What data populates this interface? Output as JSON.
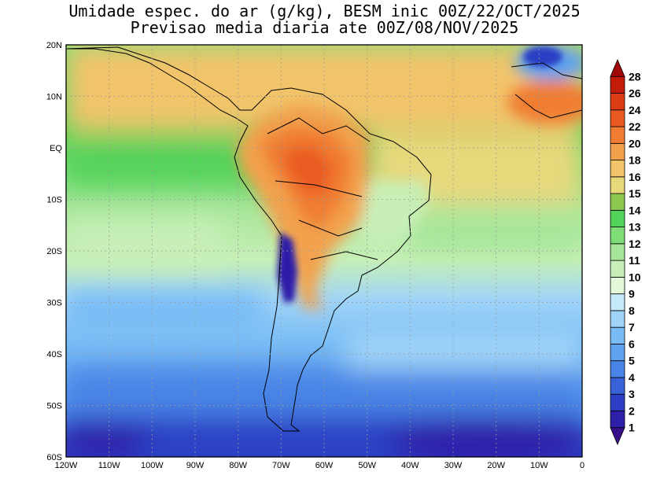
{
  "title": {
    "line1": "Umidade espec. do ar (g/kg), BESM inic 00Z/22/OCT/2025",
    "line2": "Previsao media diaria ate 00Z/08/NOV/2025"
  },
  "map": {
    "variable": "specific humidity",
    "units": "g/kg",
    "projection": "lat-lon",
    "lon_range": [
      -120,
      0
    ],
    "lat_range": [
      -60,
      20
    ],
    "lon_ticks": [
      "120W",
      "110W",
      "100W",
      "90W",
      "80W",
      "70W",
      "60W",
      "50W",
      "40W",
      "30W",
      "20W",
      "10W",
      "0"
    ],
    "lat_ticks": [
      "20N",
      "10N",
      "EQ",
      "10S",
      "20S",
      "30S",
      "40S",
      "50S",
      "60S"
    ],
    "gridlines": "dotted",
    "regions": [
      {
        "name": "Amazon / central South America",
        "value_g_kg": 22
      },
      {
        "name": "Andes altiplano",
        "value_g_kg": 2
      },
      {
        "name": "Southern ocean near 60S",
        "value_g_kg": 3
      },
      {
        "name": "Tropical Atlantic",
        "value_g_kg": 16
      },
      {
        "name": "Eastern tropical Pacific",
        "value_g_kg": 14
      }
    ]
  },
  "legend": {
    "levels": [
      "1",
      "2",
      "3",
      "4",
      "5",
      "6",
      "7",
      "8",
      "9",
      "10",
      "11",
      "12",
      "13",
      "14",
      "15",
      "16",
      "18",
      "20",
      "22",
      "24",
      "26",
      "28"
    ],
    "colors": [
      "#3a0f8c",
      "#2e1fa8",
      "#2c3fc4",
      "#3a62d8",
      "#4a84e6",
      "#5fa2ef",
      "#79bcf5",
      "#9fd4f8",
      "#c6e9f9",
      "#e3f7d9",
      "#c7efb7",
      "#a7e69a",
      "#7fdd78",
      "#54d35a",
      "#8cc84e",
      "#e8d87c",
      "#f2c46a",
      "#f2a24d",
      "#f07d32",
      "#ea5a20",
      "#dc3c13",
      "#c41c0b",
      "#a00808"
    ],
    "position": "right"
  }
}
